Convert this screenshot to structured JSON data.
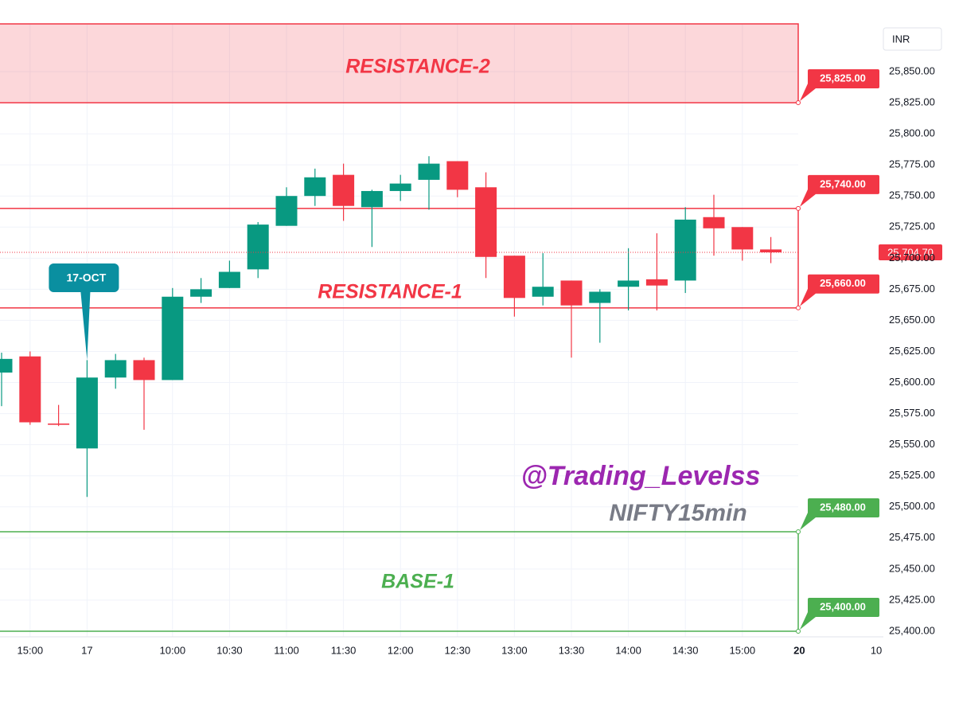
{
  "chart_data": {
    "type": "candlestick",
    "currency": "INR",
    "open": [
      25608,
      25621,
      25567,
      25547,
      25604,
      25618,
      25602,
      25669,
      25676,
      25691,
      25726,
      25750,
      25767,
      25741,
      25754,
      25763,
      25778,
      25757,
      25702,
      25669,
      25682,
      25664,
      25677,
      25683,
      25682,
      25733,
      25725,
      25707
    ],
    "high": [
      25624,
      25625,
      25582,
      25618,
      25623,
      25620,
      25676,
      25684,
      25698,
      25729,
      25757,
      25772,
      25776,
      25755,
      25767,
      25782,
      25778,
      25769,
      25702,
      25704,
      25682,
      25675,
      25708,
      25720,
      25741,
      25751,
      25725,
      25717
    ],
    "low": [
      25581,
      25566,
      25565,
      25508,
      25595,
      25562,
      25602,
      25664,
      25676,
      25684,
      25726,
      25742,
      25730,
      25709,
      25746,
      25739,
      25749,
      25684,
      25653,
      25662,
      25620,
      25632,
      25658,
      25658,
      25672,
      25702,
      25698,
      25696
    ],
    "close": [
      25619,
      25568,
      25566,
      25604,
      25618,
      25602,
      25669,
      25675,
      25689,
      25727,
      25750,
      25765,
      25742,
      25754,
      25760,
      25776,
      25755,
      25701,
      25668,
      25677,
      25662,
      25673,
      25682,
      25678,
      25731,
      25724,
      25707,
      25704.7
    ],
    "up_color": "#089981",
    "down_color": "#f23645",
    "xlim": [
      -0.056,
      30.95
    ],
    "xticks": [
      {
        "value": 1,
        "label": "15:00"
      },
      {
        "value": 3,
        "label": "17"
      },
      {
        "value": 6,
        "label": "10:00"
      },
      {
        "value": 8,
        "label": "10:30"
      },
      {
        "value": 10,
        "label": "11:00"
      },
      {
        "value": 12,
        "label": "11:30"
      },
      {
        "value": 14,
        "label": "12:00"
      },
      {
        "value": 16,
        "label": "12:30"
      },
      {
        "value": 18,
        "label": "13:00"
      },
      {
        "value": 20,
        "label": "13:30"
      },
      {
        "value": 22,
        "label": "14:00"
      },
      {
        "value": 24,
        "label": "14:30"
      },
      {
        "value": 26,
        "label": "15:00"
      },
      {
        "value": 28,
        "label": "20"
      },
      {
        "value": 30.7,
        "label": "10"
      }
    ],
    "ylim": [
      25395.5,
      25888.4
    ],
    "yticks": [
      {
        "value": 25400,
        "label": "25,400.00"
      },
      {
        "value": 25425,
        "label": "25,425.00"
      },
      {
        "value": 25450,
        "label": "25,450.00"
      },
      {
        "value": 25475,
        "label": "25,475.00"
      },
      {
        "value": 25500,
        "label": "25,500.00"
      },
      {
        "value": 25525,
        "label": "25,525.00"
      },
      {
        "value": 25550,
        "label": "25,550.00"
      },
      {
        "value": 25575,
        "label": "25,575.00"
      },
      {
        "value": 25600,
        "label": "25,600.00"
      },
      {
        "value": 25625,
        "label": "25,625.00"
      },
      {
        "value": 25650,
        "label": "25,650.00"
      },
      {
        "value": 25675,
        "label": "25,675.00"
      },
      {
        "value": 25700,
        "label": "25,700.00"
      },
      {
        "value": 25725,
        "label": "25,725.00"
      },
      {
        "value": 25750,
        "label": "25,750.00"
      },
      {
        "value": 25775,
        "label": "25,775.00"
      },
      {
        "value": 25800,
        "label": "25,800.00"
      },
      {
        "value": 25825,
        "label": "25,825.00"
      },
      {
        "value": 25850,
        "label": "25,850.00"
      }
    ],
    "grid": true,
    "levels": [
      {
        "value": 25825,
        "label": "25,825.00",
        "color": "#f23645"
      },
      {
        "value": 25740,
        "label": "25,740.00",
        "color": "#f23645"
      },
      {
        "value": 25660,
        "label": "25,660.00",
        "color": "#f23645"
      },
      {
        "value": 25480,
        "label": "25,480.00",
        "color": "#4caf50"
      },
      {
        "value": 25400,
        "label": "25,400.00",
        "color": "#4caf50"
      }
    ],
    "zones": [
      {
        "label": "RESISTANCE-2",
        "from": 25825,
        "to": 25888.4,
        "color": "#f23645",
        "filled": true
      },
      {
        "label": "RESISTANCE-1",
        "from": 25660,
        "to": 25740,
        "color": "#f23645",
        "filled": false
      },
      {
        "label": "BASE-1",
        "from": 25400,
        "to": 25480,
        "color": "#4caf50",
        "filled": false
      }
    ],
    "last_price": {
      "value": 25704.7,
      "label": "25,704.70"
    },
    "callout": {
      "label": "17-OCT",
      "slot": 3
    },
    "watermark": "@Trading_Levelss",
    "subtitle": "NIFTY15min"
  }
}
